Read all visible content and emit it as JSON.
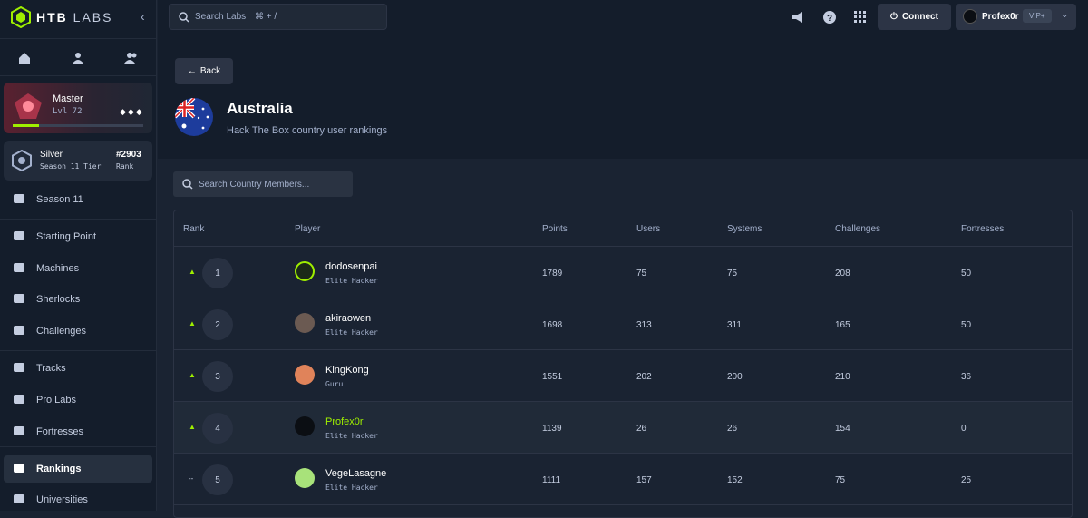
{
  "brand": {
    "name": "HTB",
    "suffix": "LABS"
  },
  "topbar": {
    "search_placeholder": "Search Labs",
    "search_shortcut": "⌘ + /",
    "connect": "Connect",
    "user": "Profex0r",
    "badge": "VIP+"
  },
  "profile": {
    "rank": "Master",
    "level": "Lvl 72"
  },
  "season": {
    "tier": "Silver",
    "tier_label": "Season 11 Tier",
    "rank": "#2903",
    "rank_label": "Rank"
  },
  "nav": [
    {
      "label": "Season 11",
      "active": false
    },
    {
      "label": "Starting Point",
      "active": false
    },
    {
      "label": "Machines",
      "active": false
    },
    {
      "label": "Sherlocks",
      "active": false
    },
    {
      "label": "Challenges",
      "active": false
    },
    {
      "label": "Tracks",
      "active": false
    },
    {
      "label": "Pro Labs",
      "active": false
    },
    {
      "label": "Fortresses",
      "active": false
    },
    {
      "label": "Rankings",
      "active": true
    },
    {
      "label": "Universities",
      "active": false
    }
  ],
  "back": "Back",
  "header": {
    "title": "Australia",
    "subtitle": "Hack The Box country user rankings"
  },
  "member_search": "Search Country Members...",
  "table": {
    "columns": [
      "Rank",
      "Player",
      "Points",
      "Users",
      "Systems",
      "Challenges",
      "Fortresses"
    ],
    "rows": [
      {
        "trend": "▲",
        "rank": "1",
        "name": "dodosenpai",
        "tier": "Elite Hacker",
        "points": "1789",
        "users": "75",
        "systems": "75",
        "challenges": "208",
        "fortresses": "50",
        "highlight": false
      },
      {
        "trend": "▲",
        "rank": "2",
        "name": "akiraowen",
        "tier": "Elite Hacker",
        "points": "1698",
        "users": "313",
        "systems": "311",
        "challenges": "165",
        "fortresses": "50",
        "highlight": false
      },
      {
        "trend": "▲",
        "rank": "3",
        "name": "KingKong",
        "tier": "Guru",
        "points": "1551",
        "users": "202",
        "systems": "200",
        "challenges": "210",
        "fortresses": "36",
        "highlight": false
      },
      {
        "trend": "▲",
        "rank": "4",
        "name": "Profex0r",
        "tier": "Elite Hacker",
        "points": "1139",
        "users": "26",
        "systems": "26",
        "challenges": "154",
        "fortresses": "0",
        "highlight": true
      },
      {
        "trend": "--",
        "rank": "5",
        "name": "VegeLasagne",
        "tier": "Elite Hacker",
        "points": "1111",
        "users": "157",
        "systems": "152",
        "challenges": "75",
        "fortresses": "25",
        "highlight": false
      }
    ]
  }
}
